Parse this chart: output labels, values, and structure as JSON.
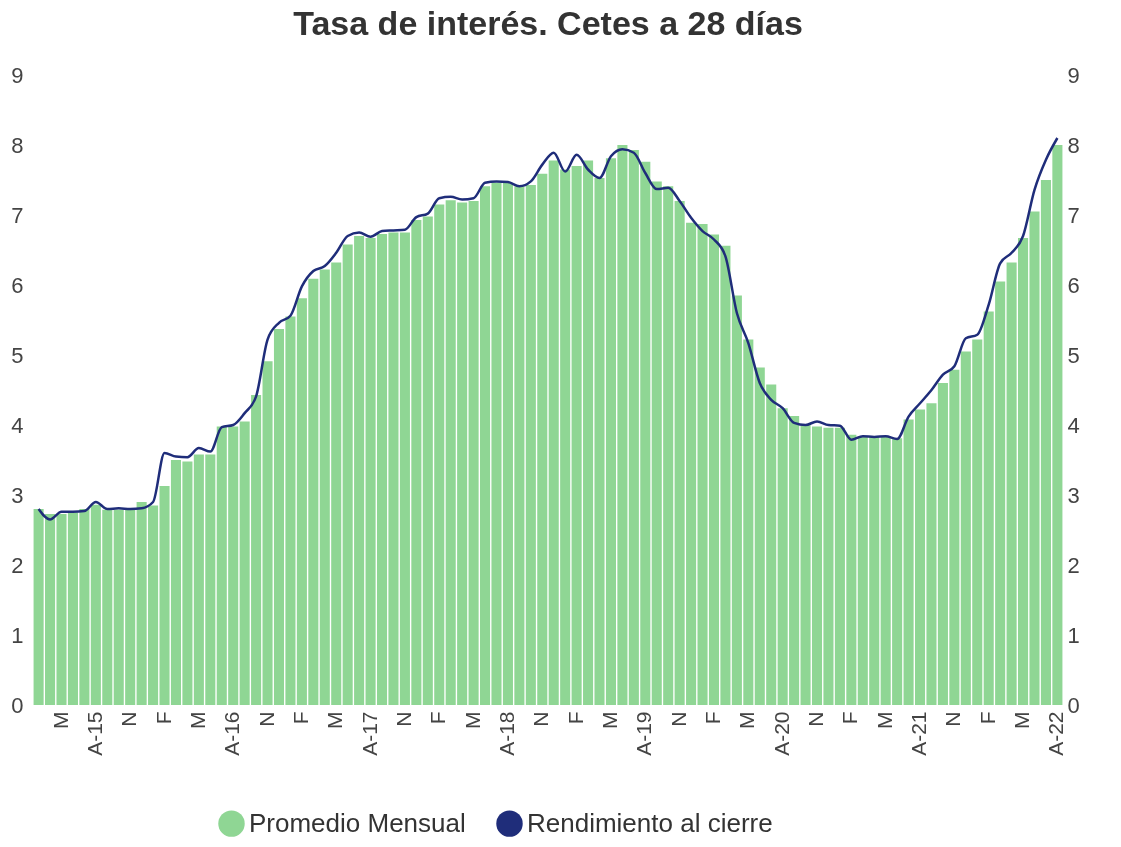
{
  "chart_data": {
    "type": "bar",
    "title": "Tasa de interés. Cetes a 28 días",
    "categories": [
      null,
      null,
      "M",
      null,
      null,
      "A-15",
      null,
      null,
      "N",
      null,
      null,
      "F",
      null,
      null,
      "M",
      null,
      null,
      "A-16",
      null,
      null,
      "N",
      null,
      null,
      "F",
      null,
      null,
      "M",
      null,
      null,
      "A-17",
      null,
      null,
      "N",
      null,
      null,
      "F",
      null,
      null,
      "M",
      null,
      null,
      "A-18",
      null,
      null,
      "N",
      null,
      null,
      "F",
      null,
      null,
      "M",
      null,
      null,
      "A-19",
      null,
      null,
      "N",
      null,
      null,
      "F",
      null,
      null,
      "M",
      null,
      null,
      "A-20",
      null,
      null,
      "N",
      null,
      null,
      "F",
      null,
      null,
      "M",
      null,
      null,
      "A-21",
      null,
      null,
      "N",
      null,
      null,
      "F",
      null,
      null,
      "M",
      null,
      null,
      "A-22"
    ],
    "series": [
      {
        "name": "Promedio Mensual",
        "color": "#8fd694",
        "values": [
          2.8,
          2.73,
          2.73,
          2.75,
          2.8,
          2.86,
          2.79,
          2.79,
          2.79,
          2.9,
          2.85,
          3.13,
          3.5,
          3.48,
          3.58,
          3.58,
          3.98,
          3.98,
          4.05,
          4.43,
          4.91,
          5.37,
          5.55,
          5.81,
          6.09,
          6.22,
          6.32,
          6.58,
          6.7,
          6.67,
          6.73,
          6.75,
          6.75,
          6.93,
          6.98,
          7.15,
          7.21,
          7.18,
          7.2,
          7.41,
          7.46,
          7.46,
          7.41,
          7.43,
          7.59,
          7.78,
          7.65,
          7.7,
          7.78,
          7.53,
          7.81,
          8.0,
          7.93,
          7.76,
          7.48,
          7.41,
          7.2,
          6.89,
          6.87,
          6.72,
          6.56,
          5.85,
          5.22,
          4.82,
          4.58,
          4.24,
          4.13,
          4.0,
          3.98,
          3.96,
          3.96,
          3.86,
          3.84,
          3.84,
          3.84,
          3.81,
          4.08,
          4.22,
          4.31,
          4.6,
          4.79,
          5.05,
          5.22,
          5.62,
          6.05,
          6.32,
          6.67,
          7.05,
          7.5,
          8.0
        ]
      },
      {
        "name": "Rendimiento al cierre",
        "type": "line",
        "color": "#1f2d7a",
        "values": [
          2.8,
          2.65,
          2.76,
          2.76,
          2.77,
          2.9,
          2.8,
          2.81,
          2.8,
          2.81,
          2.9,
          3.6,
          3.55,
          3.54,
          3.67,
          3.62,
          3.97,
          4.0,
          4.17,
          4.41,
          5.22,
          5.46,
          5.56,
          5.98,
          6.2,
          6.27,
          6.46,
          6.7,
          6.75,
          6.69,
          6.77,
          6.78,
          6.79,
          6.97,
          7.02,
          7.24,
          7.26,
          7.22,
          7.24,
          7.46,
          7.48,
          7.47,
          7.41,
          7.48,
          7.72,
          7.89,
          7.62,
          7.86,
          7.65,
          7.53,
          7.84,
          7.94,
          7.89,
          7.6,
          7.37,
          7.39,
          7.2,
          6.96,
          6.77,
          6.65,
          6.41,
          5.6,
          5.17,
          4.6,
          4.36,
          4.24,
          4.03,
          4.0,
          4.05,
          4.0,
          3.99,
          3.79,
          3.84,
          3.83,
          3.84,
          3.8,
          4.12,
          4.31,
          4.5,
          4.72,
          4.84,
          5.24,
          5.29,
          5.72,
          6.31,
          6.46,
          6.7,
          7.36,
          7.79,
          8.1
        ]
      }
    ],
    "ylim": [
      0,
      9
    ],
    "yticks": [
      0,
      1,
      2,
      3,
      4,
      5,
      6,
      7,
      8,
      9
    ],
    "y2lim": [
      0,
      9
    ],
    "y2ticks": [
      0,
      1,
      2,
      3,
      4,
      5,
      6,
      7,
      8,
      9
    ],
    "legend": "bottom"
  }
}
